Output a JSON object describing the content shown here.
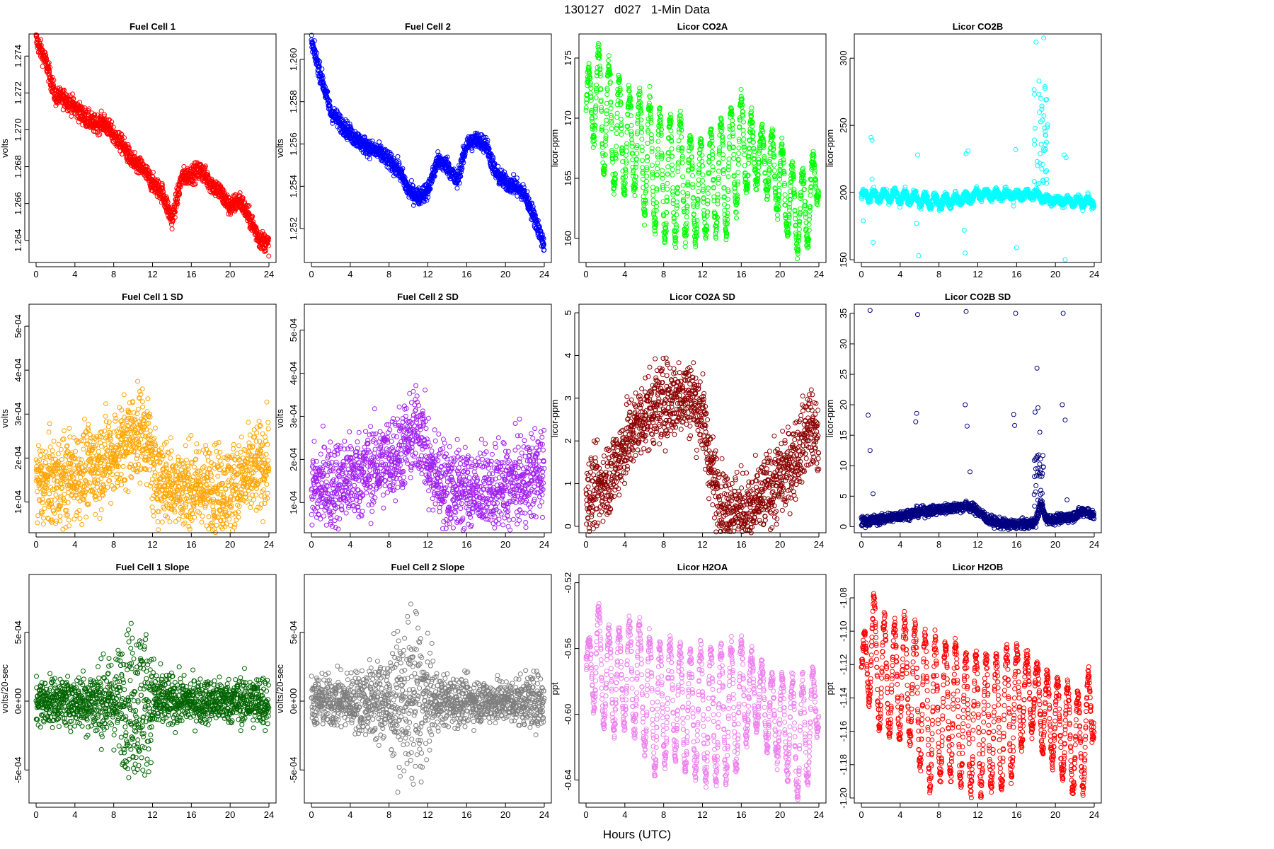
{
  "figure": {
    "title": "130127   d027   1-Min Data",
    "xlabel": "Hours (UTC)"
  },
  "chart_data": [
    {
      "type": "scatter",
      "title": "Fuel Cell 1",
      "ylabel": "volts",
      "color": "#ff0000",
      "xlim": [
        0,
        24
      ],
      "ylim": [
        1.2628,
        1.2752
      ],
      "xticks": [
        0,
        4,
        8,
        12,
        16,
        20,
        24
      ],
      "yticks": [
        1.264,
        1.266,
        1.268,
        1.27,
        1.272,
        1.274
      ],
      "ytick_labels": [
        "1.264",
        "1.266",
        "1.268",
        "1.270",
        "1.272",
        "1.274"
      ],
      "x": [
        0,
        1,
        2,
        3,
        4,
        5,
        6,
        7,
        8,
        9,
        10,
        11,
        12,
        13,
        14,
        15,
        16,
        17,
        18,
        19,
        20,
        21,
        22,
        23,
        24
      ],
      "y": [
        1.2749,
        1.2737,
        1.2718,
        1.2717,
        1.2712,
        1.2707,
        1.2703,
        1.2704,
        1.2697,
        1.2691,
        1.2682,
        1.2679,
        1.2671,
        1.2666,
        1.2651,
        1.2674,
        1.2676,
        1.2678,
        1.2671,
        1.2666,
        1.2658,
        1.2662,
        1.2652,
        1.2641,
        1.2638
      ],
      "noise": 0.00025
    },
    {
      "type": "scatter",
      "title": "Fuel Cell 2",
      "ylabel": "volts",
      "color": "#0000ff",
      "xlim": [
        0,
        24
      ],
      "ylim": [
        1.2504,
        1.2612
      ],
      "xticks": [
        0,
        4,
        8,
        12,
        16,
        20,
        24
      ],
      "yticks": [
        1.252,
        1.254,
        1.256,
        1.258,
        1.26
      ],
      "ytick_labels": [
        "1.252",
        "1.254",
        "1.256",
        "1.258",
        "1.260"
      ],
      "x": [
        0,
        1,
        2,
        3,
        4,
        5,
        6,
        7,
        8,
        9,
        10,
        11,
        12,
        13,
        14,
        15,
        16,
        17,
        18,
        19,
        20,
        21,
        22,
        23,
        24
      ],
      "y": [
        1.2608,
        1.2592,
        1.2575,
        1.257,
        1.2565,
        1.2561,
        1.2558,
        1.2556,
        1.2552,
        1.2548,
        1.2538,
        1.2535,
        1.2538,
        1.2552,
        1.255,
        1.2542,
        1.256,
        1.2562,
        1.256,
        1.2546,
        1.2542,
        1.254,
        1.2536,
        1.2525,
        1.2512
      ],
      "noise": 0.0002
    },
    {
      "type": "scatter",
      "title": "Licor CO2A",
      "ylabel": "licor-ppm",
      "color": "#00ff00",
      "xlim": [
        0,
        24
      ],
      "ylim": [
        158,
        177
      ],
      "xticks": [
        0,
        4,
        8,
        12,
        16,
        20,
        24
      ],
      "yticks": [
        160,
        165,
        170,
        175
      ],
      "ytick_labels": [
        "160",
        "165",
        "170",
        "175"
      ],
      "x": [
        0,
        1,
        2,
        3,
        4,
        5,
        6,
        7,
        8,
        9,
        10,
        11,
        12,
        13,
        14,
        15,
        16,
        17,
        18,
        19,
        20,
        21,
        22,
        23,
        24
      ],
      "y": [
        171,
        172,
        170,
        169,
        168,
        168,
        167,
        166,
        165,
        165,
        165,
        164,
        164,
        165,
        165,
        166,
        168,
        167,
        167,
        166,
        165,
        163,
        162,
        163,
        166
      ],
      "amp": [
        2,
        4,
        5,
        5,
        4,
        4,
        5,
        5,
        5,
        5,
        5,
        4,
        4,
        4,
        5,
        5,
        4,
        3,
        2,
        3,
        3,
        3,
        3,
        3,
        2
      ],
      "period": 1.05,
      "noise": 0.4
    },
    {
      "type": "scatter",
      "title": "Licor CO2B",
      "ylabel": "licor-ppm",
      "color": "#00ffff",
      "xlim": [
        0,
        24
      ],
      "ylim": [
        148,
        318
      ],
      "xticks": [
        0,
        4,
        8,
        12,
        16,
        20,
        24
      ],
      "yticks": [
        150,
        200,
        250,
        300
      ],
      "ytick_labels": [
        "150",
        "200",
        "250",
        "300"
      ],
      "x": [
        0,
        4,
        8,
        11,
        12,
        16,
        18,
        19,
        20,
        24
      ],
      "y": [
        198,
        197,
        193,
        196,
        199,
        198,
        199,
        195,
        194,
        193
      ],
      "amp": [
        3,
        4,
        4,
        3,
        3,
        2,
        2,
        2,
        2,
        3
      ],
      "period": 1.05,
      "noise": 1.5,
      "outliers": [
        [
          1.0,
          241
        ],
        [
          1.1,
          239
        ],
        [
          1.2,
          163
        ],
        [
          1.1,
          210
        ],
        [
          5.8,
          228
        ],
        [
          5.9,
          153
        ],
        [
          10.8,
          229
        ],
        [
          10.7,
          155
        ],
        [
          11.0,
          231
        ],
        [
          15.9,
          232
        ],
        [
          16.0,
          159
        ],
        [
          18.0,
          312
        ],
        [
          18.3,
          283
        ],
        [
          18.5,
          270
        ],
        [
          18.6,
          262
        ],
        [
          18.8,
          315
        ],
        [
          18.9,
          248
        ],
        [
          19.0,
          232
        ],
        [
          18.7,
          221
        ],
        [
          20.9,
          228
        ],
        [
          21.0,
          150
        ],
        [
          21.1,
          226
        ],
        [
          0.2,
          179
        ],
        [
          5.7,
          177
        ],
        [
          10.6,
          172
        ],
        [
          15.7,
          190
        ]
      ],
      "spike": {
        "x0": 17.8,
        "x1": 19.2,
        "y0": 205,
        "y1": 285,
        "n": 40
      }
    },
    {
      "type": "scatter",
      "title": "Fuel Cell 1 SD",
      "ylabel": "volts",
      "color": "#ffa500",
      "xlim": [
        0,
        24
      ],
      "ylim": [
        3e-05,
        0.00055
      ],
      "xticks": [
        0,
        4,
        8,
        12,
        16,
        20,
        24
      ],
      "yticks": [
        0.0001,
        0.0002,
        0.0003,
        0.0004,
        0.0005
      ],
      "ytick_labels": [
        "1e-04",
        "2e-04",
        "3e-04",
        "4e-04",
        "5e-04"
      ],
      "x": [
        0,
        2,
        4,
        6,
        8,
        10,
        11,
        11.6,
        12,
        14,
        16,
        18,
        20,
        22,
        24
      ],
      "y": [
        0.00014,
        0.000145,
        0.00016,
        0.00018,
        0.00021,
        0.00025,
        0.00026,
        0.00024,
        0.00017,
        0.00014,
        0.00013,
        0.00013,
        0.00013,
        0.00016,
        0.00019
      ],
      "noise": 5e-05
    },
    {
      "type": "scatter",
      "title": "Fuel Cell 2 SD",
      "ylabel": "volts",
      "color": "#a020f0",
      "xlim": [
        0,
        24
      ],
      "ylim": [
        3e-05,
        0.00056
      ],
      "xticks": [
        0,
        4,
        8,
        12,
        16,
        20,
        24
      ],
      "yticks": [
        0.0001,
        0.0002,
        0.0003,
        0.0004,
        0.0005
      ],
      "ytick_labels": [
        "1e-04",
        "2e-04",
        "3e-04",
        "4e-04",
        "5e-04"
      ],
      "x": [
        0,
        2,
        4,
        6,
        8,
        10,
        11,
        11.6,
        12,
        14,
        16,
        18,
        20,
        22,
        24
      ],
      "y": [
        0.00013,
        0.00014,
        0.000155,
        0.000175,
        0.0002,
        0.00024,
        0.00027,
        0.00025,
        0.00018,
        0.00014,
        0.00013,
        0.00012,
        0.00013,
        0.00015,
        0.00018
      ],
      "noise": 5e-05
    },
    {
      "type": "scatter",
      "title": "Licor CO2A SD",
      "ylabel": "licor-ppm",
      "color": "#8b0000",
      "xlim": [
        0,
        24
      ],
      "ylim": [
        -0.15,
        5.2
      ],
      "xticks": [
        0,
        4,
        8,
        12,
        16,
        20,
        24
      ],
      "yticks": [
        0,
        1,
        2,
        3,
        4,
        5
      ],
      "ytick_labels": [
        "0",
        "1",
        "2",
        "3",
        "4",
        "5"
      ],
      "x": [
        0,
        1,
        2,
        3,
        4,
        5,
        6,
        7,
        8,
        9,
        10,
        11,
        12,
        13,
        14,
        15,
        16,
        17,
        18,
        19,
        20,
        21,
        22,
        23,
        24
      ],
      "y": [
        0.7,
        0.8,
        1.0,
        1.4,
        1.9,
        2.3,
        2.6,
        2.8,
        2.9,
        3.0,
        3.1,
        3.0,
        2.6,
        1.2,
        0.5,
        0.4,
        0.35,
        0.3,
        0.6,
        0.9,
        1.1,
        1.4,
        1.8,
        2.4,
        1.9
      ],
      "noise": 0.45
    },
    {
      "type": "scatter",
      "title": "Licor CO2B SD",
      "ylabel": "licor-ppm",
      "color": "#000080",
      "xlim": [
        0,
        24
      ],
      "ylim": [
        -1,
        36.5
      ],
      "xticks": [
        0,
        4,
        8,
        12,
        16,
        20,
        24
      ],
      "yticks": [
        0,
        5,
        10,
        15,
        20,
        25,
        30,
        35
      ],
      "ytick_labels": [
        "0",
        "5",
        "10",
        "15",
        "20",
        "25",
        "30",
        "35"
      ],
      "x": [
        0,
        2,
        4,
        6,
        8,
        10,
        11,
        12,
        13,
        14,
        15,
        16,
        17,
        18,
        18.5,
        19,
        20,
        21,
        22,
        23,
        24
      ],
      "y": [
        0.8,
        1.2,
        1.8,
        2.4,
        2.8,
        3.2,
        3.4,
        2.6,
        1.2,
        0.6,
        0.4,
        0.4,
        0.4,
        0.8,
        4,
        1.2,
        1.2,
        1.4,
        1.8,
        2.6,
        1.8
      ],
      "noise": 0.4,
      "outliers": [
        [
          0.9,
          35.5
        ],
        [
          0.7,
          18.3
        ],
        [
          0.9,
          12.5
        ],
        [
          1.2,
          5.4
        ],
        [
          5.8,
          34.8
        ],
        [
          5.7,
          18.6
        ],
        [
          5.6,
          17.2
        ],
        [
          10.8,
          35.3
        ],
        [
          10.7,
          20.0
        ],
        [
          10.9,
          16.5
        ],
        [
          11.2,
          9.0
        ],
        [
          15.9,
          35.0
        ],
        [
          15.7,
          18.4
        ],
        [
          15.8,
          16.6
        ],
        [
          18.1,
          26.0
        ],
        [
          18.2,
          19.5
        ],
        [
          17.9,
          18.8
        ],
        [
          18.4,
          15.5
        ],
        [
          20.8,
          35.0
        ],
        [
          20.7,
          20.0
        ],
        [
          21.0,
          17.5
        ],
        [
          21.2,
          4.4
        ]
      ],
      "spike": {
        "x0": 17.8,
        "x1": 18.8,
        "y0": 3,
        "y1": 12,
        "n": 30
      }
    },
    {
      "type": "scatter",
      "title": "Fuel Cell 1 Slope",
      "ylabel": "volts/20-sec",
      "color": "#006400",
      "xlim": [
        0,
        24
      ],
      "ylim": [
        -0.00074,
        0.00092
      ],
      "xticks": [
        0,
        4,
        8,
        12,
        16,
        20,
        24
      ],
      "yticks": [
        -0.0005,
        0,
        0.0005
      ],
      "ytick_labels": [
        "-5e-04",
        "0e+00",
        "5e-04"
      ],
      "x": [
        0,
        4,
        8,
        10,
        11,
        12,
        13,
        16,
        20,
        24
      ],
      "y": [
        0,
        0,
        0,
        0,
        0,
        0,
        0,
        0,
        0,
        0
      ],
      "spread": [
        8e-05,
        9e-05,
        0.00016,
        0.00028,
        0.0003,
        0.00016,
        0.0001,
        8e-05,
        8e-05,
        0.0001
      ]
    },
    {
      "type": "scatter",
      "title": "Fuel Cell 2 Slope",
      "ylabel": "volts/20-sec",
      "color": "#7f7f7f",
      "xlim": [
        0,
        24
      ],
      "ylim": [
        -0.00074,
        0.00092
      ],
      "xticks": [
        0,
        4,
        8,
        12,
        16,
        20,
        24
      ],
      "yticks": [
        -0.0005,
        0,
        0.0005
      ],
      "ytick_labels": [
        "-5e-04",
        "0e+00",
        "5e-04"
      ],
      "x": [
        0,
        4,
        8,
        10,
        11,
        12,
        13,
        16,
        20,
        24
      ],
      "y": [
        0,
        0,
        0,
        0,
        0,
        0,
        0,
        0,
        0,
        0
      ],
      "spread": [
        9e-05,
        0.0001,
        0.00017,
        0.00028,
        0.0003,
        0.00017,
        0.0001,
        8e-05,
        8e-05,
        0.0001
      ]
    },
    {
      "type": "scatter",
      "title": "Licor H2OA",
      "ylabel": "ppt",
      "color": "#ee82ee",
      "xlim": [
        0,
        24
      ],
      "ylim": [
        -0.654,
        -0.515
      ],
      "xticks": [
        0,
        4,
        8,
        12,
        16,
        20,
        24
      ],
      "yticks": [
        -0.64,
        -0.6,
        -0.56,
        -0.52
      ],
      "ytick_labels": [
        "-0.64",
        "-0.60",
        "-0.56",
        "-0.52"
      ],
      "x": [
        0,
        1,
        2,
        3,
        4,
        5,
        6,
        7,
        8,
        9,
        10,
        11,
        12,
        13,
        14,
        15,
        16,
        17,
        18,
        19,
        20,
        21,
        22,
        23,
        24
      ],
      "y": [
        -0.57,
        -0.565,
        -0.578,
        -0.58,
        -0.578,
        -0.575,
        -0.585,
        -0.595,
        -0.595,
        -0.59,
        -0.598,
        -0.6,
        -0.6,
        -0.6,
        -0.6,
        -0.598,
        -0.592,
        -0.585,
        -0.59,
        -0.6,
        -0.603,
        -0.61,
        -0.615,
        -0.61,
        -0.585
      ],
      "amp": [
        0.005,
        0.035,
        0.03,
        0.03,
        0.03,
        0.035,
        0.035,
        0.04,
        0.035,
        0.035,
        0.035,
        0.035,
        0.04,
        0.04,
        0.04,
        0.04,
        0.035,
        0.02,
        0.02,
        0.025,
        0.025,
        0.03,
        0.035,
        0.03,
        0.02
      ],
      "period": 1.05,
      "noise": 0.003
    },
    {
      "type": "scatter",
      "title": "Licor H2OB",
      "ylabel": "ppt",
      "color": "#ff0000",
      "xlim": [
        0,
        24
      ],
      "ylim": [
        -1.203,
        -1.066
      ],
      "xticks": [
        0,
        4,
        8,
        12,
        16,
        20,
        24
      ],
      "yticks": [
        -1.2,
        -1.18,
        -1.16,
        -1.14,
        -1.12,
        -1.1,
        -1.08
      ],
      "ytick_labels": [
        "-1.20",
        "-1.18",
        "-1.16",
        "-1.14",
        "-1.12",
        "-1.10",
        "-1.08"
      ],
      "x": [
        0,
        1,
        2,
        3,
        4,
        5,
        6,
        7,
        8,
        9,
        10,
        11,
        12,
        13,
        14,
        15,
        16,
        17,
        18,
        19,
        20,
        21,
        22,
        23,
        24
      ],
      "y": [
        -1.12,
        -1.11,
        -1.125,
        -1.13,
        -1.128,
        -1.13,
        -1.14,
        -1.15,
        -1.148,
        -1.145,
        -1.15,
        -1.155,
        -1.155,
        -1.155,
        -1.155,
        -1.152,
        -1.145,
        -1.135,
        -1.14,
        -1.15,
        -1.155,
        -1.16,
        -1.168,
        -1.165,
        -1.135
      ],
      "amp": [
        0.005,
        0.035,
        0.035,
        0.03,
        0.035,
        0.035,
        0.04,
        0.045,
        0.04,
        0.04,
        0.04,
        0.04,
        0.04,
        0.04,
        0.04,
        0.04,
        0.035,
        0.02,
        0.02,
        0.025,
        0.025,
        0.03,
        0.03,
        0.03,
        0.025
      ],
      "period": 1.05,
      "noise": 0.003
    }
  ]
}
